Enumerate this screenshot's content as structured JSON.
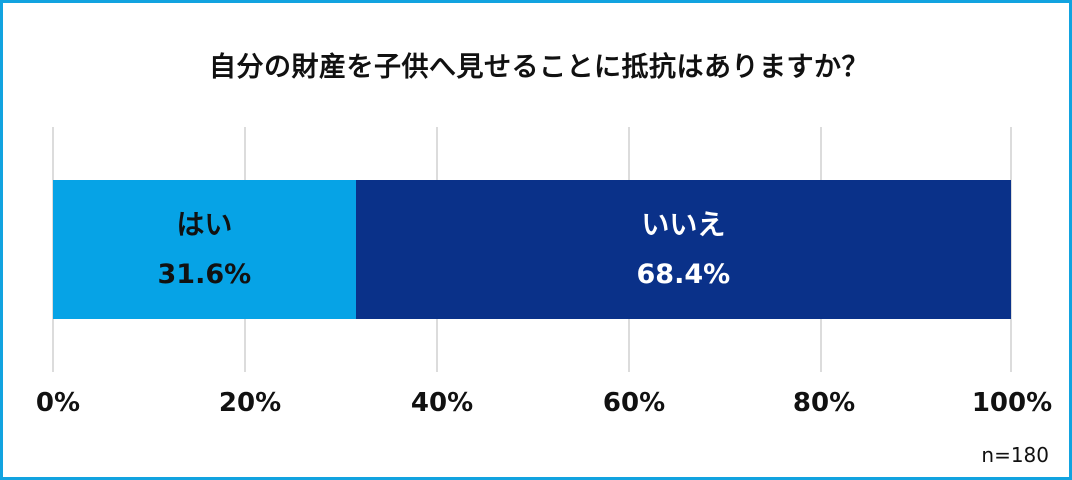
{
  "title": "自分の財産を子供へ見せることに抵抗はありますか？",
  "sample_size": "n=180",
  "colors": {
    "frame": "#12a3e0",
    "yes": "#06a3e6",
    "no": "#0a3189",
    "yes_text": "#111111",
    "no_text": "#ffffff",
    "grid": "#dcdcdc"
  },
  "segments": [
    {
      "label": "はい",
      "value_text": "31.6%",
      "value": 31.6
    },
    {
      "label": "いいえ",
      "value_text": "68.4%",
      "value": 68.4
    }
  ],
  "x_ticks": [
    "0%",
    "20%",
    "40%",
    "60%",
    "80%",
    "100%"
  ],
  "chart_data": {
    "type": "bar",
    "orientation": "horizontal",
    "stacked": true,
    "title": "自分の財産を子供へ見せることに抵抗はありますか？",
    "categories": [
      ""
    ],
    "series": [
      {
        "name": "はい",
        "values": [
          31.6
        ]
      },
      {
        "name": "いいえ",
        "values": [
          68.4
        ]
      }
    ],
    "xlabel": "",
    "ylabel": "",
    "xlim": [
      0,
      100
    ],
    "x_tick_labels": [
      "0%",
      "20%",
      "40%",
      "60%",
      "80%",
      "100%"
    ],
    "grid": true,
    "legend": "none (labels inside bar segments)",
    "annotations": [
      "n=180"
    ]
  }
}
